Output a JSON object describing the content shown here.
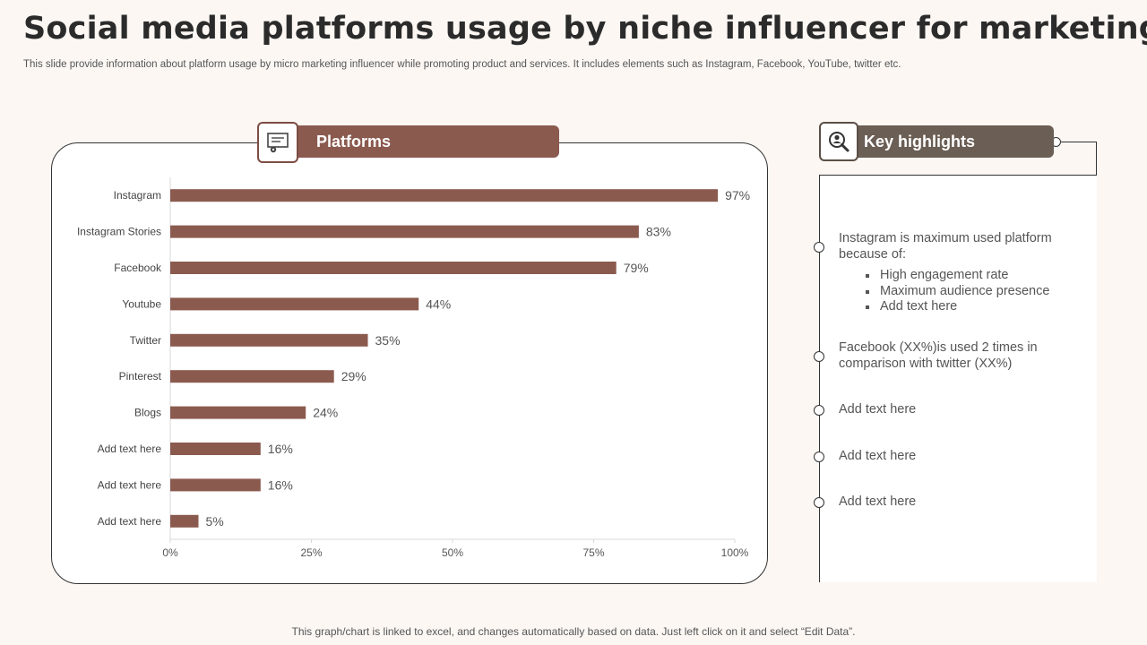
{
  "slide": {
    "title": "Social media platforms usage by niche influencer for marketing",
    "subtitle": "This slide provide information about platform usage by micro marketing influencer while promoting product and services. It includes elements such as Instagram, Facebook, YouTube, twitter etc.",
    "footer": "This graph/chart is linked to excel,  and changes automatically based on data. Just left click on it and select “Edit Data”."
  },
  "platforms_panel": {
    "title": "Platforms",
    "icon": "presentation-board-icon"
  },
  "key_highlights": {
    "title": "Key highlights",
    "icon": "magnifier-person-icon",
    "items": [
      {
        "text": "Instagram is maximum used platform because of:",
        "bullets": [
          "High engagement rate",
          "Maximum audience presence",
          "Add text here"
        ]
      },
      {
        "text": "Facebook (XX%)is used 2 times in comparison with twitter (XX%)"
      },
      {
        "text": "Add text here"
      },
      {
        "text": "Add text here"
      },
      {
        "text": "Add text here"
      }
    ]
  },
  "colors": {
    "bar": "#8b5a4f",
    "tab": "#8b5a4f",
    "highlight_tab": "#6b5e55",
    "background": "#fcf7f3"
  },
  "chart_data": {
    "type": "bar",
    "orientation": "horizontal",
    "categories": [
      "Instagram",
      "Instagram Stories",
      "Facebook",
      "Youtube",
      "Twitter",
      "Pinterest",
      "Blogs",
      "Add text here",
      "Add text here",
      "Add text here"
    ],
    "values": [
      97,
      83,
      79,
      44,
      35,
      29,
      24,
      16,
      16,
      5
    ],
    "data_labels": [
      "97%",
      "83%",
      "79%",
      "44%",
      "35%",
      "29%",
      "24%",
      "16%",
      "16%",
      "5%"
    ],
    "x_ticks": [
      "0%",
      "25%",
      "50%",
      "75%",
      "100%"
    ],
    "x_tick_values": [
      0,
      25,
      50,
      75,
      100
    ],
    "xlim": [
      0,
      100
    ],
    "grid": false,
    "legend": "none"
  }
}
